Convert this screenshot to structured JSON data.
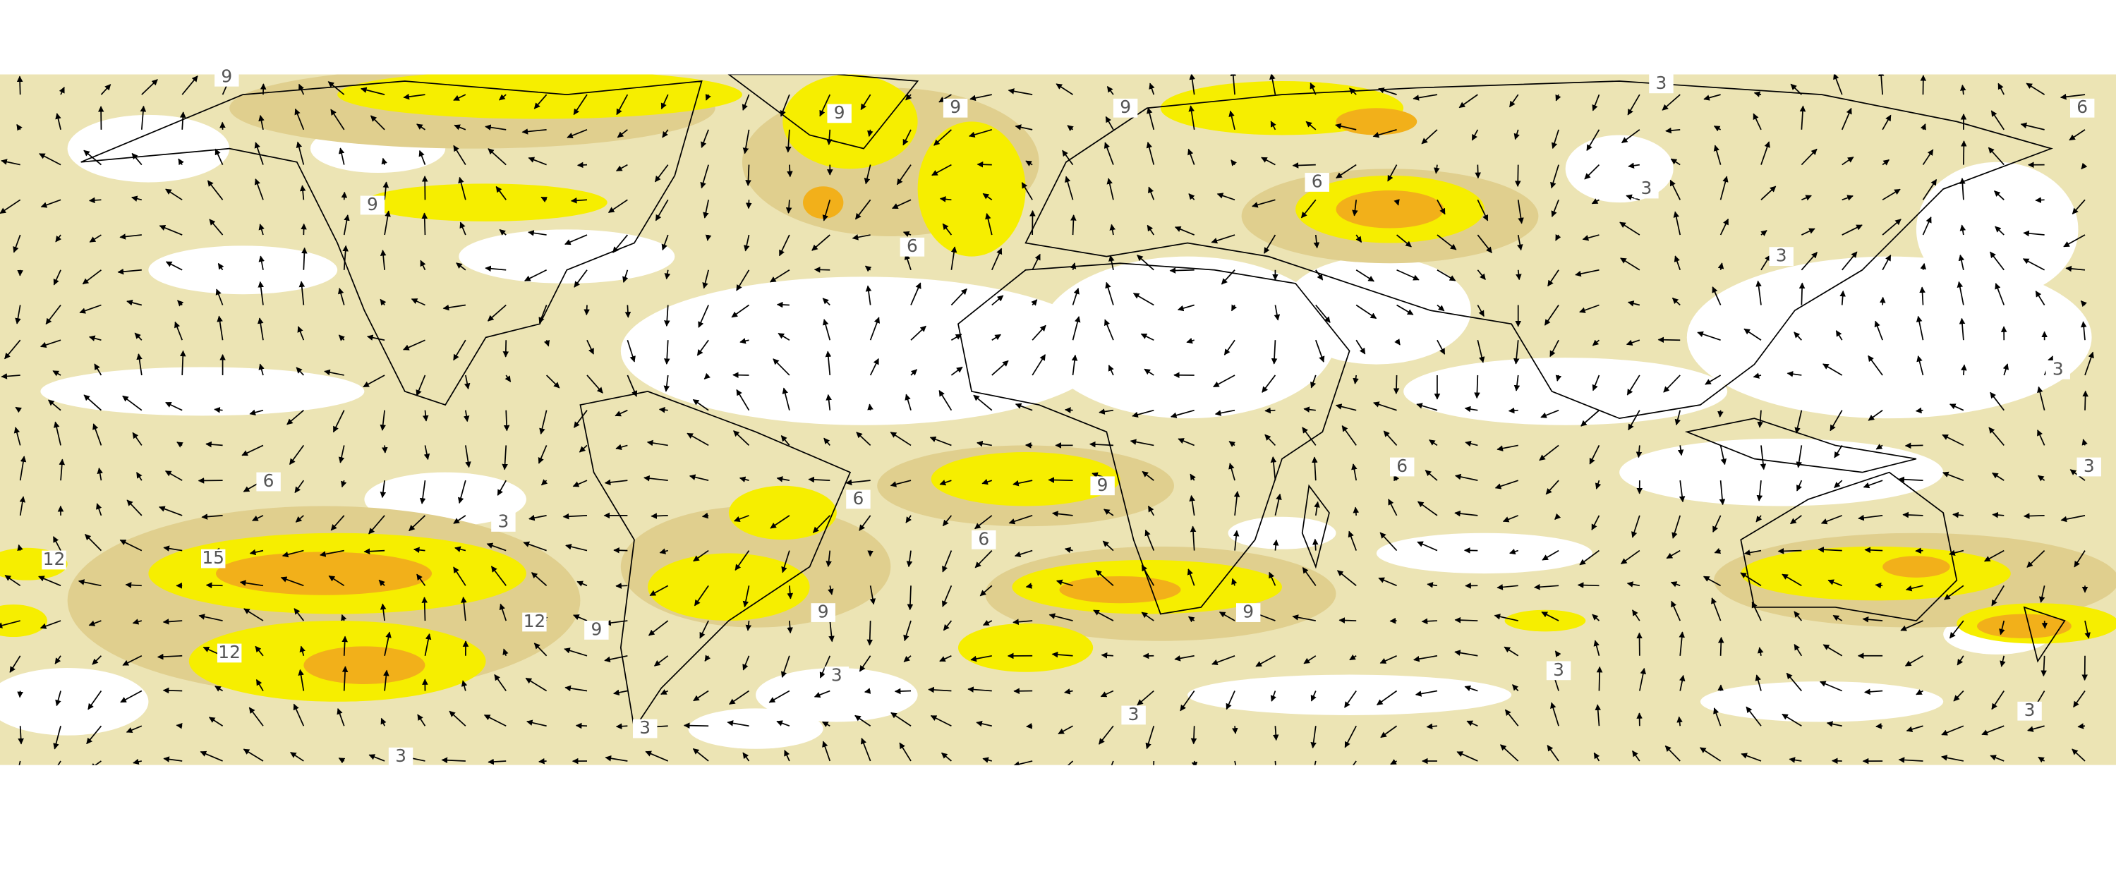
{
  "contour_labels": [
    "9",
    "9",
    "9",
    "9",
    "3",
    "6",
    "9",
    "6",
    "6",
    "3",
    "3",
    "3",
    "6",
    "3",
    "6",
    "9",
    "6",
    "3",
    "12",
    "15",
    "6",
    "12",
    "9",
    "9",
    "9",
    "12",
    "3",
    "3",
    "3",
    "3",
    "3",
    "3"
  ]
}
